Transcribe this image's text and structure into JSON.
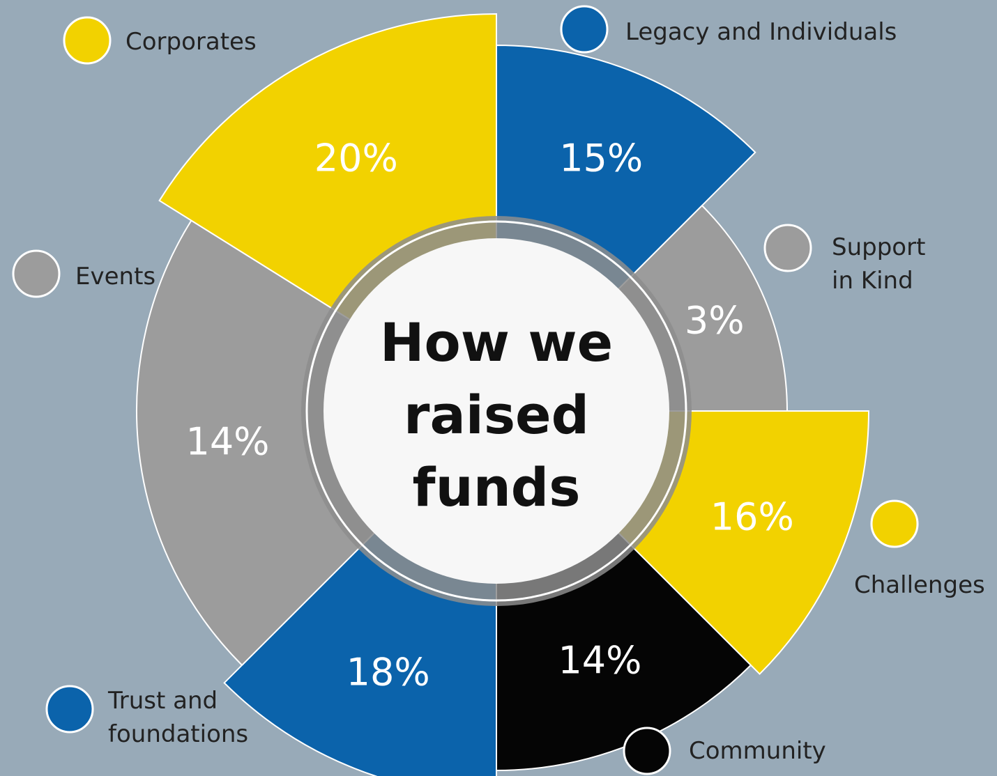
{
  "chart_data": {
    "type": "polar",
    "title": "How we raised funds",
    "categories": [
      "Legacy and Individuals",
      "Support in Kind",
      "Challenges",
      "Community",
      "Trust and foundations",
      "Events",
      "Corporates"
    ],
    "values": [
      15,
      3,
      16,
      14,
      18,
      14,
      20
    ],
    "value_labels": [
      "15%",
      "3%",
      "16%",
      "14%",
      "18%",
      "14%",
      "20%"
    ],
    "colors": [
      "#0b63ab",
      "#9c9c9c",
      "#f2d200",
      "#050505",
      "#0b63ab",
      "#9c9c9c",
      "#f2d200"
    ]
  }
}
